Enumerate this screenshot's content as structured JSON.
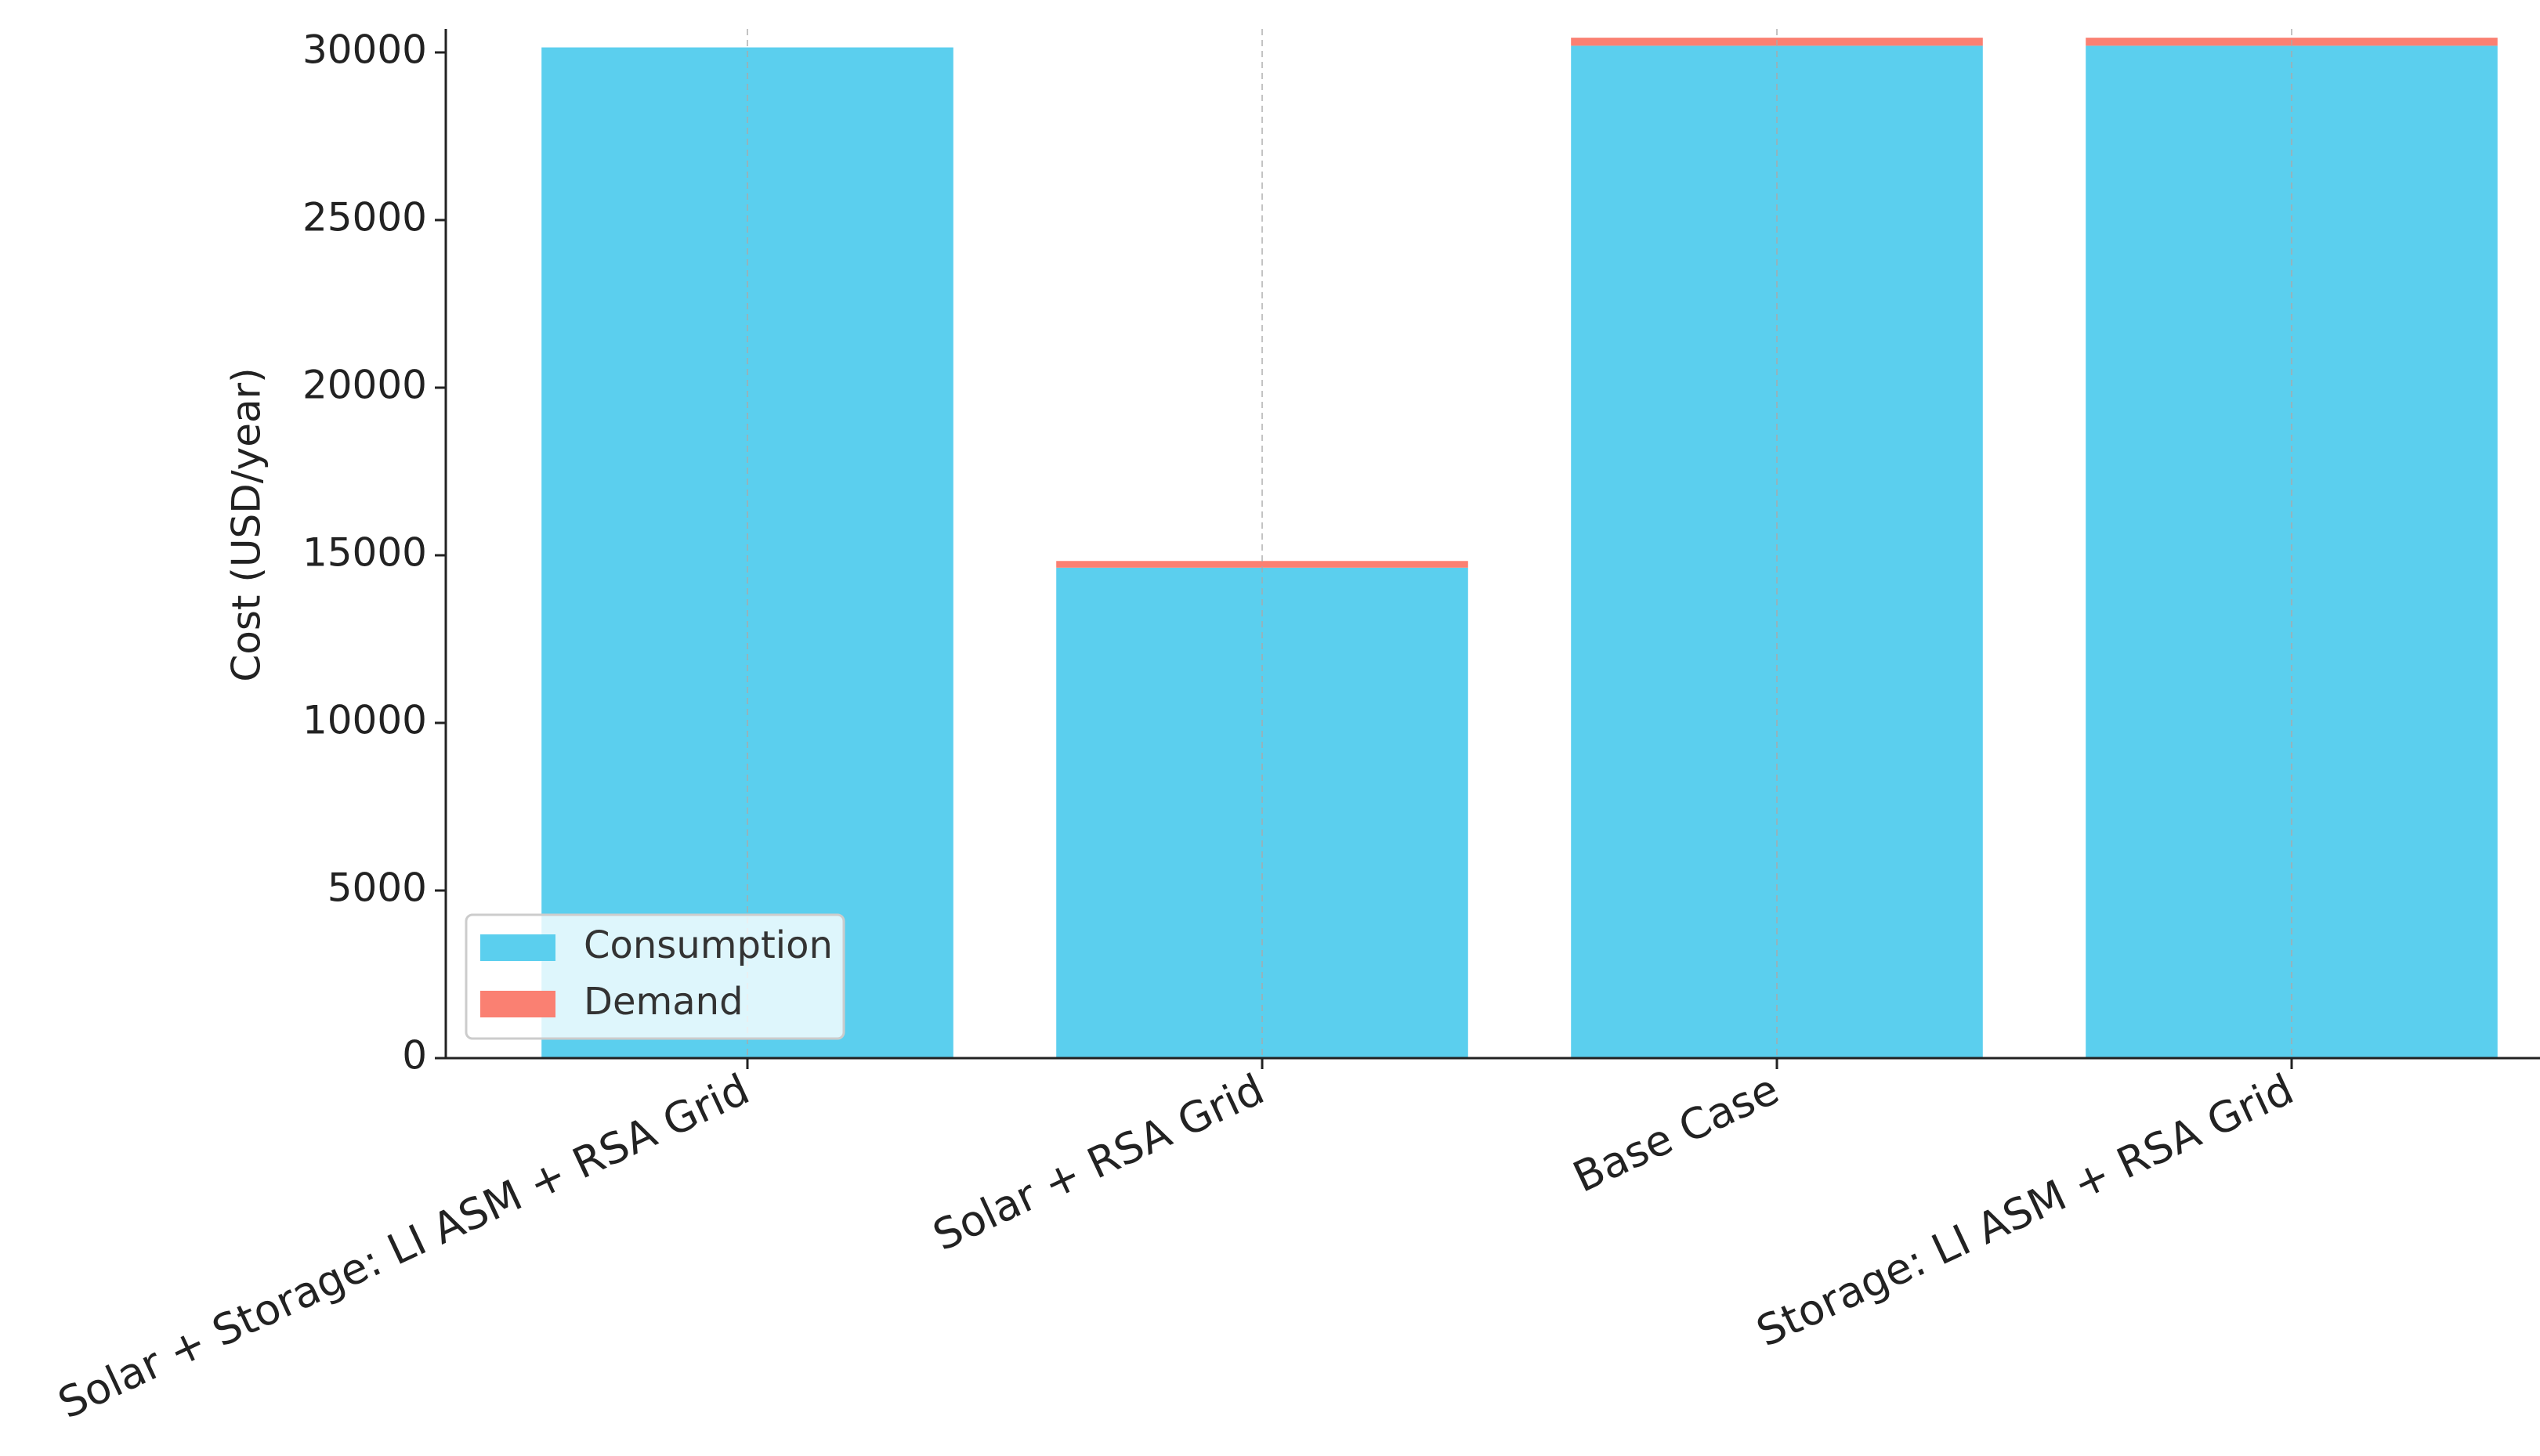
{
  "chart_data": {
    "type": "stacked_bar",
    "ylabel": "Cost (USD/year)",
    "categories": [
      "Solar + Storage: LI ASM + RSA Grid",
      "Solar + RSA Grid",
      "Base Case",
      "Storage: LI ASM + RSA Grid"
    ],
    "series": [
      {
        "name": "Consumption",
        "color": "#5bcfee",
        "values": [
          30150,
          14630,
          30200,
          30200
        ]
      },
      {
        "name": "Demand",
        "color": "#fa8072",
        "values": [
          0,
          200,
          240,
          240
        ]
      }
    ],
    "ylim": [
      0,
      30700
    ],
    "yticks": [
      0,
      5000,
      10000,
      15000,
      20000,
      25000,
      30000
    ],
    "xgrid": true,
    "legend": "lower left"
  }
}
